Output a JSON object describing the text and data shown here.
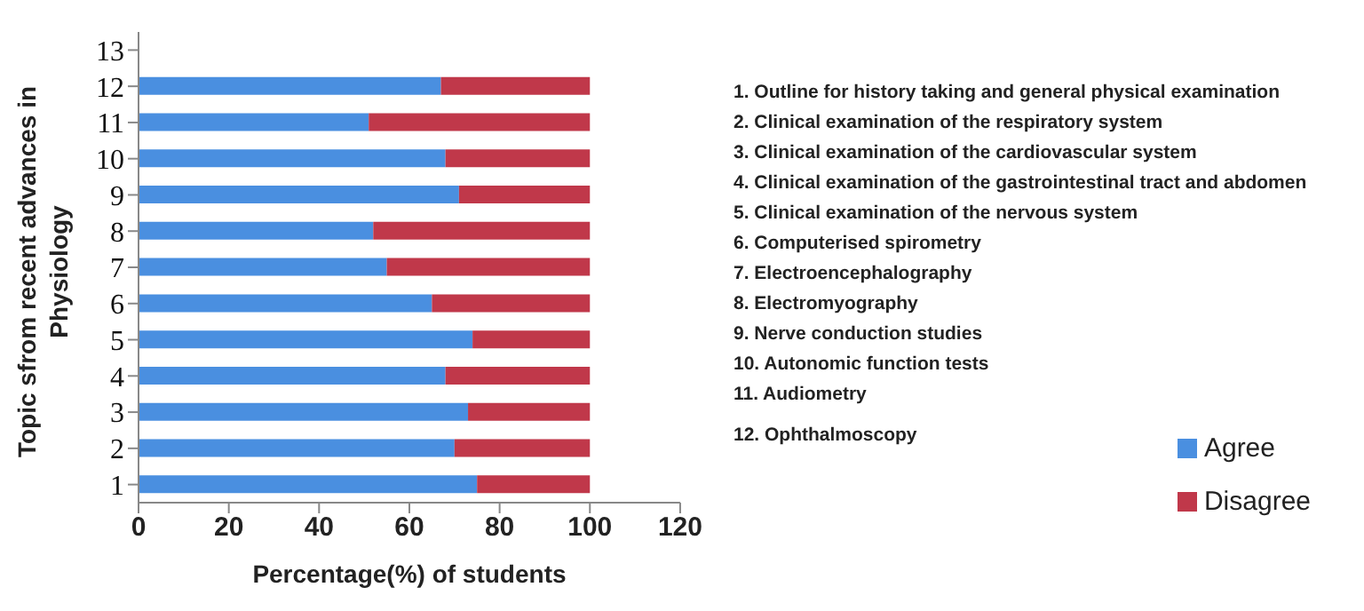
{
  "chart_data": {
    "type": "bar",
    "orientation": "horizontal",
    "stacked": true,
    "xlabel": "Percentage(%) of students",
    "ylabel": "Topic sfrom recent advances in Physiology",
    "categories": [
      "13",
      "12",
      "11",
      "10",
      "9",
      "8",
      "7",
      "6",
      "5",
      "4",
      "3",
      "2",
      "1"
    ],
    "series": [
      {
        "name": "Agree",
        "color": "#4a8fe0",
        "values": [
          null,
          67,
          51,
          68,
          71,
          52,
          55,
          65,
          74,
          68,
          73,
          70,
          75
        ]
      },
      {
        "name": "Disagree",
        "color": "#c0384a",
        "values": [
          null,
          33,
          49,
          32,
          29,
          48,
          45,
          35,
          26,
          32,
          27,
          30,
          25
        ]
      }
    ],
    "xlim": [
      0,
      120
    ],
    "xticks": [
      0,
      20,
      40,
      60,
      80,
      100,
      120
    ],
    "grid": false,
    "legend": "right",
    "annotations": [
      "1. Outline for history taking  and general physical  examination",
      "2. Clinical  examination of the respiratory system",
      "3. Clinical  examination of the cardiovascular  system",
      "4. Clinical  examination of the gastrointestinal  tract and abdomen",
      "5. Clinical  examination of the nervous system",
      "6. Computerised spirometry",
      "7. Electroencephalography",
      "8. Electromyography",
      "9. Nerve conduction  studies",
      "10. Autonomic function  tests",
      "11. Audiometry",
      "12. Ophthalmoscopy"
    ]
  }
}
